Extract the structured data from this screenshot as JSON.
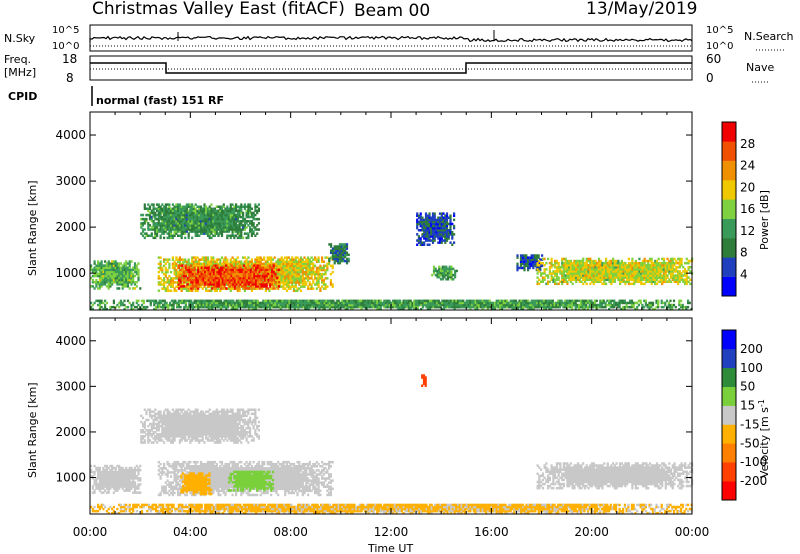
{
  "header": {
    "station": "Christmas Valley East (fitACF)",
    "beam": "Beam 00",
    "date": "13/May/2019"
  },
  "status_panels": {
    "nsky_label": "N.Sky",
    "nsky_ticks": [
      "10^5",
      "10^0"
    ],
    "nsearch_label": "N.Search",
    "nsearch_ticks": [
      "10^5",
      "10^0"
    ],
    "freq_label_1": "Freq.",
    "freq_label_2": "[MHz]",
    "freq_ticks": [
      "18",
      "8"
    ],
    "nave_label": "Nave",
    "nave_ticks": [
      "60",
      "0"
    ],
    "cpid_label": "CPID",
    "cpid_text": "normal (fast) 151 RF"
  },
  "colors": {
    "power_scale": [
      "#0000ff",
      "#1f3fbf",
      "#2e7d3a",
      "#3a9a5a",
      "#7fd13f",
      "#f0c800",
      "#f09000",
      "#f05000",
      "#f00000"
    ],
    "velocity_scale": [
      "#ff0000",
      "#ff4000",
      "#ff8000",
      "#ffb000",
      "#c8c8c8",
      "#7ad03a",
      "#2e8b3a",
      "#2040c0",
      "#0000ff"
    ]
  },
  "chart_data": [
    {
      "type": "heatmap",
      "name": "power",
      "ylabel": "Slant Range [km]",
      "x_range_hours": [
        0,
        24
      ],
      "y_range_km": [
        200,
        4500
      ],
      "y_ticks": [
        "1000",
        "2000",
        "3000",
        "4000"
      ],
      "colorbar_label": "Power [dB]",
      "colorbar_ticks": [
        "4",
        "8",
        "12",
        "16",
        "20",
        "24",
        "28"
      ],
      "colorbar_range": [
        0,
        32
      ],
      "regions": [
        {
          "t0": 0.0,
          "t1": 2.0,
          "r0": 650,
          "r1": 1250,
          "v": 14
        },
        {
          "t0": 2.7,
          "t1": 9.7,
          "r0": 600,
          "r1": 1350,
          "v": 19
        },
        {
          "t0": 3.5,
          "t1": 7.5,
          "r0": 650,
          "r1": 1150,
          "v": 27
        },
        {
          "t0": 2.0,
          "t1": 6.7,
          "r0": 1750,
          "r1": 2500,
          "v": 11
        },
        {
          "t0": 9.5,
          "t1": 10.3,
          "r0": 1200,
          "r1": 1650,
          "v": 8
        },
        {
          "t0": 13.0,
          "t1": 14.5,
          "r0": 1600,
          "r1": 2300,
          "v": 6
        },
        {
          "t0": 13.6,
          "t1": 14.6,
          "r0": 850,
          "r1": 1150,
          "v": 13
        },
        {
          "t0": 17.0,
          "t1": 18.0,
          "r0": 1050,
          "r1": 1400,
          "v": 6
        },
        {
          "t0": 17.8,
          "t1": 24.0,
          "r0": 750,
          "r1": 1300,
          "v": 18
        },
        {
          "t0": 0.0,
          "t1": 24.0,
          "r0": 200,
          "r1": 420,
          "v": 12
        }
      ]
    },
    {
      "type": "heatmap",
      "name": "velocity",
      "ylabel": "Slant Range [km]",
      "x_range_hours": [
        0,
        24
      ],
      "y_range_km": [
        200,
        4500
      ],
      "y_ticks": [
        "1000",
        "2000",
        "3000",
        "4000"
      ],
      "xlabel": "Time UT",
      "x_ticks": [
        "00:00",
        "04:00",
        "08:00",
        "12:00",
        "16:00",
        "20:00",
        "00:00"
      ],
      "colorbar_label": "Velocity [m s",
      "colorbar_exp": "-1",
      "colorbar_ticks": [
        "-200",
        "-100",
        "-50",
        "-15",
        "15",
        "50",
        "100",
        "200"
      ],
      "regions": [
        {
          "t0": 0.0,
          "t1": 2.0,
          "r0": 650,
          "r1": 1250,
          "v": 0
        },
        {
          "t0": 2.7,
          "t1": 9.7,
          "r0": 600,
          "r1": 1350,
          "v": 0
        },
        {
          "t0": 3.6,
          "t1": 4.8,
          "r0": 620,
          "r1": 1100,
          "v": -30
        },
        {
          "t0": 5.5,
          "t1": 7.3,
          "r0": 700,
          "r1": 1150,
          "v": 30
        },
        {
          "t0": 2.0,
          "t1": 6.7,
          "r0": 1750,
          "r1": 2500,
          "v": 0
        },
        {
          "t0": 13.2,
          "t1": 13.4,
          "r0": 2950,
          "r1": 3250,
          "v": -150
        },
        {
          "t0": 17.8,
          "t1": 24.0,
          "r0": 750,
          "r1": 1300,
          "v": 0
        },
        {
          "t0": 0.0,
          "t1": 24.0,
          "r0": 200,
          "r1": 420,
          "v": -20
        }
      ]
    }
  ]
}
